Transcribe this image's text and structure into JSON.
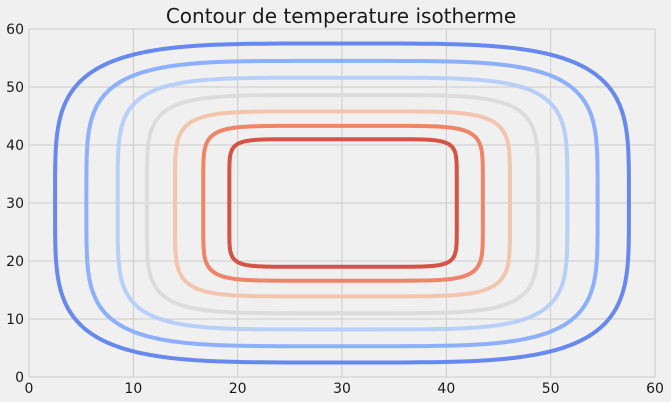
{
  "chart_data": {
    "type": "contour",
    "title": "Contour de temperature isotherme",
    "xlabel": "",
    "ylabel": "",
    "xlim": [
      0,
      60
    ],
    "ylim": [
      0,
      60
    ],
    "xticks": [
      0,
      10,
      20,
      30,
      40,
      50,
      60
    ],
    "yticks": [
      0,
      10,
      20,
      30,
      40,
      50,
      60
    ],
    "grid": true,
    "background": "#f0f0f0",
    "grid_color": "#cbcbcb",
    "contours": [
      {
        "color": "#6788ee",
        "x": [
          2.5,
          57.5
        ],
        "y": [
          2.5,
          57.5
        ],
        "exponent": 4.2
      },
      {
        "color": "#8caffe",
        "x": [
          5.5,
          54.5
        ],
        "y": [
          5.3,
          54.5
        ],
        "exponent": 4.6
      },
      {
        "color": "#b7cff9",
        "x": [
          8.5,
          51.6
        ],
        "y": [
          8.2,
          51.6
        ],
        "exponent": 5.0
      },
      {
        "color": "#dddcdc",
        "x": [
          11.3,
          48.8
        ],
        "y": [
          11.0,
          48.6
        ],
        "exponent": 5.5
      },
      {
        "color": "#f4c5ad",
        "x": [
          14.0,
          46.1
        ],
        "y": [
          13.9,
          45.8
        ],
        "exponent": 6.2
      },
      {
        "color": "#ee8468",
        "x": [
          16.7,
          43.5
        ],
        "y": [
          16.6,
          43.3
        ],
        "exponent": 7.2
      },
      {
        "color": "#d65244",
        "x": [
          19.2,
          41.0
        ],
        "y": [
          19.0,
          41.0
        ],
        "exponent": 9.0
      }
    ]
  }
}
